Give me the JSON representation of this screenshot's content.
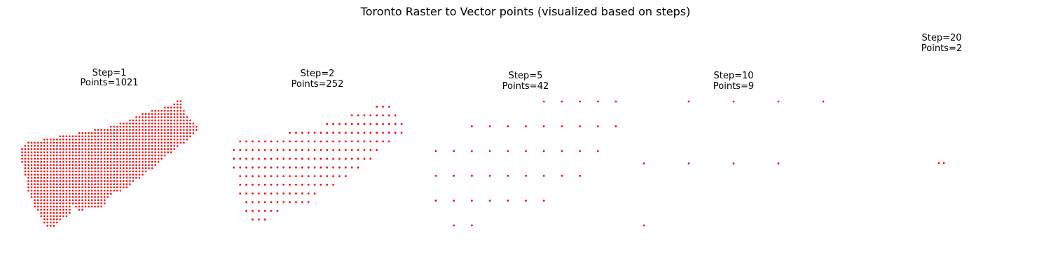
{
  "figure": {
    "title": "Toronto Raster to Vector points (visualized based on steps)",
    "point_color": "#ff0000"
  },
  "chart_data": [
    {
      "type": "scatter",
      "title": "Step=1\nPoints=1021",
      "step": 1,
      "points": 1021,
      "grid": false,
      "axes_visible": false,
      "note_on_points": "dense grid: generated as the Toronto raster mask at step 1"
    },
    {
      "type": "scatter",
      "title": "Step=2\nPoints=252",
      "step": 2,
      "points": 252,
      "grid": false,
      "axes_visible": false
    },
    {
      "type": "scatter",
      "title": "Step=5\nPoints=42",
      "step": 5,
      "points": 42,
      "grid": false,
      "axes_visible": false,
      "rows": [
        [
          6,
          7,
          8,
          9,
          10
        ],
        [
          2,
          3,
          4,
          5,
          6,
          7,
          8,
          9,
          10
        ],
        [
          0,
          1,
          2,
          3,
          4,
          5,
          6,
          7,
          8,
          9
        ],
        [
          0,
          1,
          2,
          3,
          4,
          5,
          6,
          7,
          8
        ],
        [
          0,
          1,
          2,
          3,
          4,
          5,
          6
        ],
        [
          1,
          2
        ]
      ]
    },
    {
      "type": "scatter",
      "title": "Step=10\nPoints=9",
      "step": 10,
      "points": 9,
      "grid": false,
      "axes_visible": false,
      "rows": [
        [
          1,
          2,
          3,
          4
        ],
        [
          0,
          1,
          2,
          3
        ],
        [
          0
        ]
      ]
    },
    {
      "type": "scatter",
      "title": "Step=20\nPoints=2",
      "step": 20,
      "points": 2,
      "grid": false,
      "axes_visible": false,
      "rows": [
        [
          0,
          1
        ]
      ]
    }
  ]
}
